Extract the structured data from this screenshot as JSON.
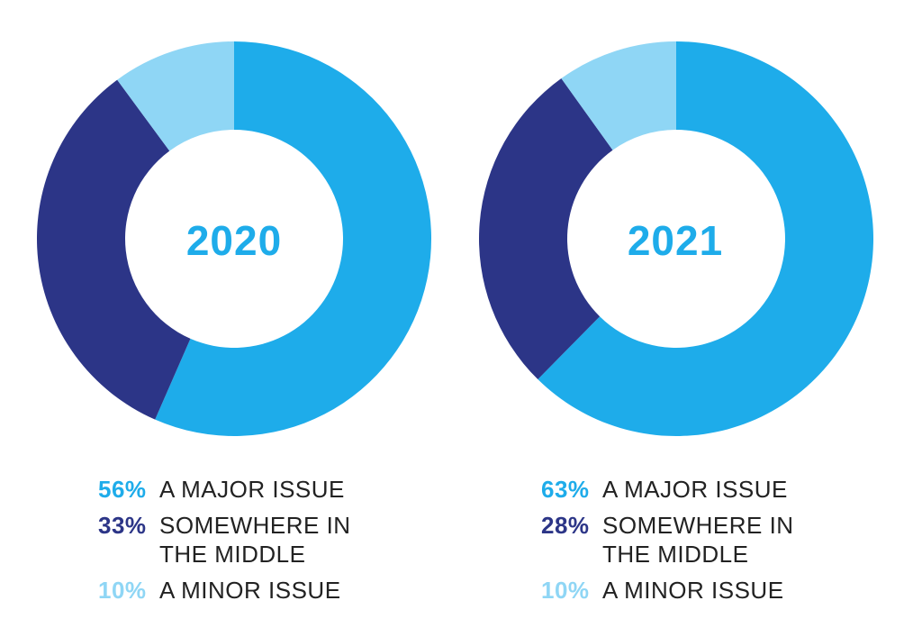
{
  "colors": {
    "major": "#1EACEA",
    "middle": "#2C3587",
    "minor": "#8FD6F5",
    "text": "#222222",
    "background": "#FFFFFF"
  },
  "chart_data": [
    {
      "type": "pie",
      "title": "2020",
      "unit": "%",
      "categories": [
        "A MAJOR ISSUE",
        "SOMEWHERE IN THE MIDDLE",
        "A MINOR ISSUE"
      ],
      "values": [
        56,
        33,
        10
      ],
      "value_labels": [
        "56%",
        "33%",
        "10%"
      ],
      "series_colors": [
        "#1EACEA",
        "#2C3587",
        "#8FD6F5"
      ]
    },
    {
      "type": "pie",
      "title": "2021",
      "unit": "%",
      "categories": [
        "A MAJOR ISSUE",
        "SOMEWHERE IN THE MIDDLE",
        "A MINOR ISSUE"
      ],
      "values": [
        63,
        28,
        10
      ],
      "value_labels": [
        "63%",
        "28%",
        "10%"
      ],
      "series_colors": [
        "#1EACEA",
        "#2C3587",
        "#8FD6F5"
      ]
    }
  ]
}
